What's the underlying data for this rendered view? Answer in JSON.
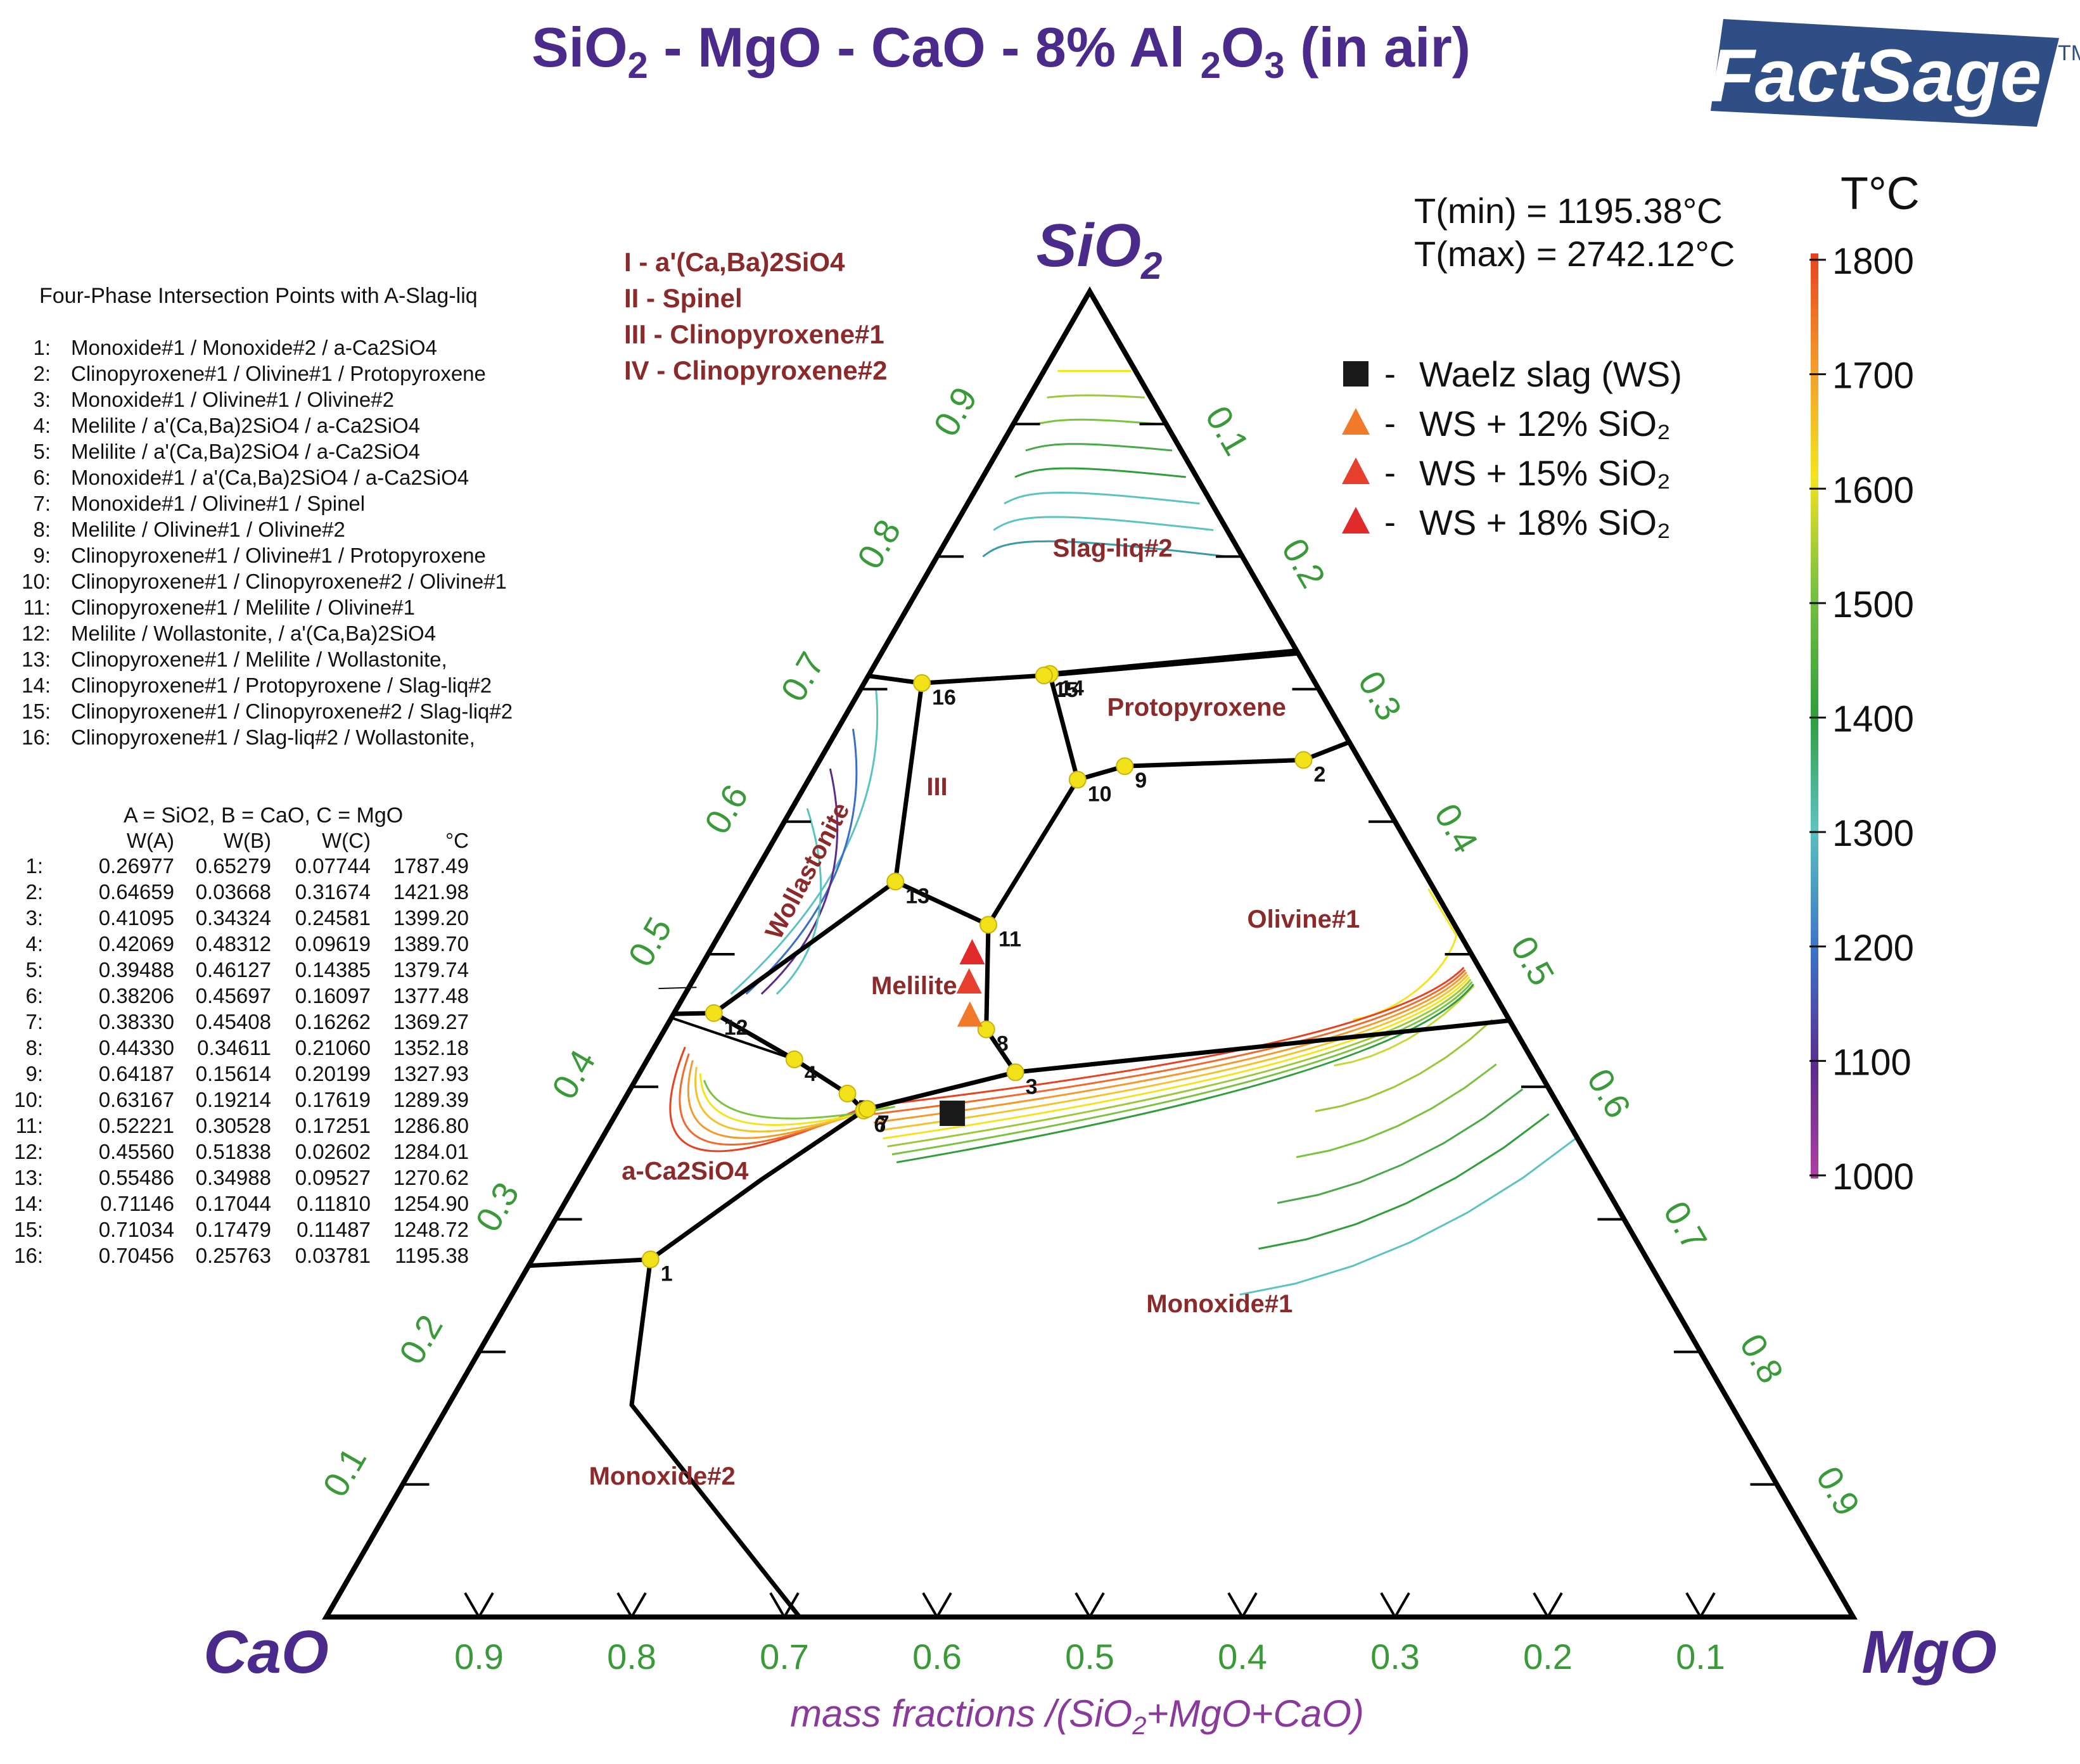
{
  "header": {
    "title_parts": [
      "SiO",
      "2",
      " - MgO - CaO - 8% Al ",
      "2",
      "O",
      "3",
      " (in air)"
    ],
    "logo_text": "FactSage",
    "logo_tm": "TM"
  },
  "colors": {
    "title": "#4a2a8a",
    "phase_label": "#8b2a2a",
    "axis_tick": "#3a9a3a",
    "boundary": "#000000",
    "point": "#f2e21a"
  },
  "vertices": {
    "top": [
      "SiO",
      "2"
    ],
    "left": "CaO",
    "right": "MgO"
  },
  "temperature_range": {
    "tmin": "T(min) = 1195.38°C",
    "tmax": "T(max) = 2742.12°C"
  },
  "colorbar": {
    "title": "T°C",
    "ticks": [
      "1800",
      "1700",
      "1600",
      "1500",
      "1400",
      "1300",
      "1200",
      "1100",
      "1000"
    ],
    "values": [
      1800,
      1700,
      1600,
      1500,
      1400,
      1300,
      1200,
      1100,
      1000
    ],
    "colors": [
      "#e8411f",
      "#f39a2b",
      "#f3e41f",
      "#7cc241",
      "#2f9e3b",
      "#5cc3c0",
      "#3a6fc9",
      "#5b2c8c",
      "#b03fa4"
    ]
  },
  "symbol_legend": [
    {
      "symbol": "square",
      "color": "#1a1a1a",
      "label": "Waelz slag (WS)"
    },
    {
      "symbol": "triangle",
      "color": "#f07a2a",
      "label": "WS + 12% SiO₂"
    },
    {
      "symbol": "triangle",
      "color": "#e8402f",
      "label": "WS + 15% SiO₂"
    },
    {
      "symbol": "triangle",
      "color": "#e12a2a",
      "label": "WS + 18% SiO₂"
    }
  ],
  "roman_legend": [
    "I  -  a'(Ca,Ba)2SiO4",
    "II  -  Spinel",
    "III  -  Clinopyroxene#1",
    "IV  -  Clinopyroxene#2"
  ],
  "four_phase": {
    "title": "Four-Phase Intersection Points with A-Slag-liq",
    "items": [
      {
        "n": "1:",
        "text": "Monoxide#1 / Monoxide#2 / a-Ca2SiO4"
      },
      {
        "n": "2:",
        "text": "Clinopyroxene#1 / Olivine#1 / Protopyroxene"
      },
      {
        "n": "3:",
        "text": "Monoxide#1 / Olivine#1 / Olivine#2"
      },
      {
        "n": "4:",
        "text": "Melilite / a'(Ca,Ba)2SiO4 / a-Ca2SiO4"
      },
      {
        "n": "5:",
        "text": "Melilite / a'(Ca,Ba)2SiO4 / a-Ca2SiO4"
      },
      {
        "n": "6:",
        "text": "Monoxide#1 / a'(Ca,Ba)2SiO4 / a-Ca2SiO4"
      },
      {
        "n": "7:",
        "text": "Monoxide#1 / Olivine#1 / Spinel"
      },
      {
        "n": "8:",
        "text": "Melilite / Olivine#1 / Olivine#2"
      },
      {
        "n": "9:",
        "text": "Clinopyroxene#1 / Olivine#1 / Protopyroxene"
      },
      {
        "n": "10:",
        "text": "Clinopyroxene#1 / Clinopyroxene#2 / Olivine#1"
      },
      {
        "n": "11:",
        "text": "Clinopyroxene#1 / Melilite / Olivine#1"
      },
      {
        "n": "12:",
        "text": "Melilite / Wollastonite, / a'(Ca,Ba)2SiO4"
      },
      {
        "n": "13:",
        "text": "Clinopyroxene#1 / Melilite / Wollastonite,"
      },
      {
        "n": "14:",
        "text": "Clinopyroxene#1 / Protopyroxene / Slag-liq#2"
      },
      {
        "n": "15:",
        "text": "Clinopyroxene#1 / Clinopyroxene#2 / Slag-liq#2"
      },
      {
        "n": "16:",
        "text": "Clinopyroxene#1 / Slag-liq#2 / Wollastonite,"
      }
    ]
  },
  "comp_table": {
    "caption": "A = SiO2,  B = CaO,  C = MgO",
    "headers": [
      "W(A)",
      "W(B)",
      "W(C)",
      "°C"
    ],
    "rows": [
      {
        "n": "1:",
        "a": "0.26977",
        "b": "0.65279",
        "c": "0.07744",
        "t": "1787.49"
      },
      {
        "n": "2:",
        "a": "0.64659",
        "b": "0.03668",
        "c": "0.31674",
        "t": "1421.98"
      },
      {
        "n": "3:",
        "a": "0.41095",
        "b": "0.34324",
        "c": "0.24581",
        "t": "1399.20"
      },
      {
        "n": "4:",
        "a": "0.42069",
        "b": "0.48312",
        "c": "0.09619",
        "t": "1389.70"
      },
      {
        "n": "5:",
        "a": "0.39488",
        "b": "0.46127",
        "c": "0.14385",
        "t": "1379.74"
      },
      {
        "n": "6:",
        "a": "0.38206",
        "b": "0.45697",
        "c": "0.16097",
        "t": "1377.48"
      },
      {
        "n": "7:",
        "a": "0.38330",
        "b": "0.45408",
        "c": "0.16262",
        "t": "1369.27"
      },
      {
        "n": "8:",
        "a": "0.44330",
        "b": "0.34611",
        "c": "0.21060",
        "t": "1352.18"
      },
      {
        "n": "9:",
        "a": "0.64187",
        "b": "0.15614",
        "c": "0.20199",
        "t": "1327.93"
      },
      {
        "n": "10:",
        "a": "0.63167",
        "b": "0.19214",
        "c": "0.17619",
        "t": "1289.39"
      },
      {
        "n": "11:",
        "a": "0.52221",
        "b": "0.30528",
        "c": "0.17251",
        "t": "1286.80"
      },
      {
        "n": "12:",
        "a": "0.45560",
        "b": "0.51838",
        "c": "0.02602",
        "t": "1284.01"
      },
      {
        "n": "13:",
        "a": "0.55486",
        "b": "0.34988",
        "c": "0.09527",
        "t": "1270.62"
      },
      {
        "n": "14:",
        "a": "0.71146",
        "b": "0.17044",
        "c": "0.11810",
        "t": "1254.90"
      },
      {
        "n": "15:",
        "a": "0.71034",
        "b": "0.17479",
        "c": "0.11487",
        "t": "1248.72"
      },
      {
        "n": "16:",
        "a": "0.70456",
        "b": "0.25763",
        "c": "0.03781",
        "t": "1195.38"
      }
    ]
  },
  "axis": {
    "tick_labels": [
      "0.1",
      "0.2",
      "0.3",
      "0.4",
      "0.5",
      "0.6",
      "0.7",
      "0.8",
      "0.9"
    ],
    "xlabel_parts": [
      "mass fractions /(SiO",
      "2",
      "+MgO+CaO)"
    ]
  },
  "chart_data": {
    "type": "ternary phase diagram",
    "components": {
      "A": "SiO2",
      "B": "CaO",
      "C": "MgO"
    },
    "fixed_component": "8% Al2O3",
    "atmosphere": "in air",
    "tmin_c": 1195.38,
    "tmax_c": 2742.12,
    "points": [
      {
        "id": "1",
        "a": 0.26977,
        "b": 0.65279,
        "c": 0.07744,
        "t": 1787.49
      },
      {
        "id": "2",
        "a": 0.64659,
        "b": 0.03668,
        "c": 0.31674,
        "t": 1421.98
      },
      {
        "id": "3",
        "a": 0.41095,
        "b": 0.34324,
        "c": 0.24581,
        "t": 1399.2
      },
      {
        "id": "4",
        "a": 0.42069,
        "b": 0.48312,
        "c": 0.09619,
        "t": 1389.7
      },
      {
        "id": "5",
        "a": 0.39488,
        "b": 0.46127,
        "c": 0.14385,
        "t": 1379.74
      },
      {
        "id": "6",
        "a": 0.38206,
        "b": 0.45697,
        "c": 0.16097,
        "t": 1377.48
      },
      {
        "id": "7",
        "a": 0.3833,
        "b": 0.45408,
        "c": 0.16262,
        "t": 1369.27
      },
      {
        "id": "8",
        "a": 0.4433,
        "b": 0.34611,
        "c": 0.2106,
        "t": 1352.18
      },
      {
        "id": "9",
        "a": 0.64187,
        "b": 0.15614,
        "c": 0.20199,
        "t": 1327.93
      },
      {
        "id": "10",
        "a": 0.63167,
        "b": 0.19214,
        "c": 0.17619,
        "t": 1289.39
      },
      {
        "id": "11",
        "a": 0.52221,
        "b": 0.30528,
        "c": 0.17251,
        "t": 1286.8
      },
      {
        "id": "12",
        "a": 0.4556,
        "b": 0.51838,
        "c": 0.02602,
        "t": 1284.01
      },
      {
        "id": "13",
        "a": 0.55486,
        "b": 0.34988,
        "c": 0.09527,
        "t": 1270.62
      },
      {
        "id": "14",
        "a": 0.71146,
        "b": 0.17044,
        "c": 0.1181,
        "t": 1254.9
      },
      {
        "id": "15",
        "a": 0.71034,
        "b": 0.17479,
        "c": 0.11487,
        "t": 1248.72
      },
      {
        "id": "16",
        "a": 0.70456,
        "b": 0.25763,
        "c": 0.03781,
        "t": 1195.38
      }
    ],
    "samples": [
      {
        "name": "Waelz slag (WS)",
        "a": 0.38,
        "b": 0.4,
        "c": 0.22
      },
      {
        "name": "WS + 12% SiO2",
        "a": 0.453,
        "b": 0.352,
        "c": 0.195
      },
      {
        "name": "WS + 15% SiO2",
        "a": 0.478,
        "b": 0.34,
        "c": 0.182
      },
      {
        "name": "WS + 18% SiO2",
        "a": 0.5,
        "b": 0.327,
        "c": 0.173
      }
    ],
    "regions": [
      {
        "label": "Slag-liq#2",
        "a": 0.8,
        "b": 0.085,
        "c": 0.115
      },
      {
        "label": "Protopyroxene",
        "a": 0.68,
        "b": 0.09,
        "c": 0.23
      },
      {
        "label": "III",
        "a": 0.62,
        "b": 0.29,
        "c": 0.09
      },
      {
        "label": "Wollastonite",
        "a": 0.56,
        "b": 0.4,
        "c": 0.04
      },
      {
        "label": "Olivine#1",
        "a": 0.52,
        "b": 0.1,
        "c": 0.38
      },
      {
        "label": "Melilite",
        "a": 0.47,
        "b": 0.38,
        "c": 0.15
      },
      {
        "label": "a-Ca2SiO4",
        "a": 0.33,
        "b": 0.6,
        "c": 0.07
      },
      {
        "label": "Monoxide#1",
        "a": 0.23,
        "b": 0.3,
        "c": 0.47
      },
      {
        "label": "Monoxide#2",
        "a": 0.1,
        "b": 0.73,
        "c": 0.17
      }
    ]
  }
}
